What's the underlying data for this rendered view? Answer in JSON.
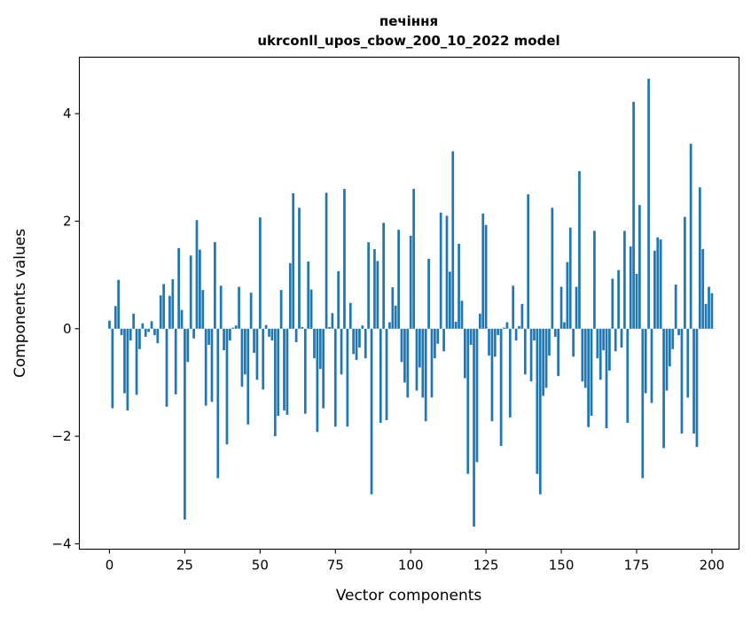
{
  "chart_data": {
    "type": "bar",
    "title_line1": "печіння",
    "title_line2": "ukrconll_upos_cbow_200_10_2022 model",
    "xlabel": "Vector components",
    "ylabel": "Components values",
    "xlim": [
      -10,
      209
    ],
    "ylim": [
      -4.1,
      5.05
    ],
    "xticks": [
      0,
      25,
      50,
      75,
      100,
      125,
      150,
      175,
      200
    ],
    "xtick_labels": [
      "0",
      "25",
      "50",
      "75",
      "100",
      "125",
      "150",
      "175",
      "200"
    ],
    "yticks": [
      -4,
      -2,
      0,
      2,
      4
    ],
    "ytick_labels": [
      "−4",
      "−2",
      "0",
      "2",
      "4"
    ],
    "bar_color": "#1f77b4",
    "grid": false,
    "values": [
      0.15,
      -1.48,
      0.42,
      0.91,
      -0.12,
      -1.2,
      -1.52,
      -0.22,
      0.28,
      -1.23,
      -0.38,
      0.1,
      -0.15,
      -0.06,
      0.14,
      -0.12,
      -0.27,
      0.62,
      0.83,
      -1.45,
      0.61,
      0.92,
      -1.22,
      1.5,
      0.35,
      -3.55,
      -0.62,
      1.36,
      -0.18,
      2.02,
      1.47,
      0.72,
      -1.43,
      -0.3,
      -1.36,
      1.61,
      -2.78,
      0.8,
      -0.4,
      -2.15,
      -0.22,
      0.02,
      0.06,
      0.78,
      -1.08,
      -0.85,
      -1.78,
      0.67,
      -0.45,
      -0.95,
      2.07,
      -1.13,
      0.07,
      -0.15,
      -0.22,
      -2.0,
      -1.62,
      0.72,
      -1.52,
      -1.6,
      1.22,
      2.52,
      -0.25,
      2.25,
      0.03,
      -1.58,
      1.25,
      0.73,
      -0.55,
      -1.92,
      -0.75,
      -1.48,
      2.53,
      0.03,
      0.29,
      -1.82,
      1.07,
      -0.85,
      2.6,
      -1.82,
      0.48,
      -0.47,
      -0.58,
      -0.35,
      0.06,
      -0.55,
      1.61,
      -3.08,
      1.48,
      1.26,
      -1.75,
      1.97,
      -1.7,
      0.12,
      0.77,
      0.43,
      1.84,
      -0.62,
      -1.0,
      -1.28,
      1.73,
      2.6,
      -1.15,
      -0.72,
      -1.28,
      -1.72,
      1.3,
      -1.28,
      -0.55,
      -0.28,
      2.16,
      -0.42,
      2.1,
      1.06,
      3.3,
      0.13,
      1.58,
      0.52,
      -0.92,
      -2.7,
      -0.3,
      -3.68,
      -2.48,
      0.28,
      2.14,
      1.93,
      -0.5,
      -1.72,
      -0.52,
      -0.12,
      -2.18,
      0.02,
      0.12,
      -1.65,
      0.8,
      -0.22,
      0.05,
      0.46,
      -0.85,
      2.5,
      -0.98,
      -0.22,
      -2.7,
      -3.08,
      -1.25,
      -1.1,
      -0.5,
      2.25,
      -0.15,
      -0.88,
      0.78,
      0.12,
      1.24,
      1.88,
      -0.52,
      0.78,
      2.93,
      -0.98,
      -1.1,
      -1.83,
      -1.62,
      1.82,
      -0.55,
      -0.95,
      -0.4,
      -1.85,
      -0.78,
      0.93,
      -0.42,
      1.09,
      -0.35,
      1.82,
      -1.75,
      1.53,
      4.22,
      1.02,
      2.3,
      -2.78,
      -1.2,
      4.65,
      -1.38,
      1.45,
      1.7,
      1.66,
      -2.22,
      -1.15,
      -0.7,
      -0.38,
      0.82,
      -0.12,
      -1.95,
      2.08,
      -1.28,
      3.44,
      -1.95,
      -2.2,
      2.63,
      1.48,
      0.46,
      0.78,
      0.66
    ]
  }
}
